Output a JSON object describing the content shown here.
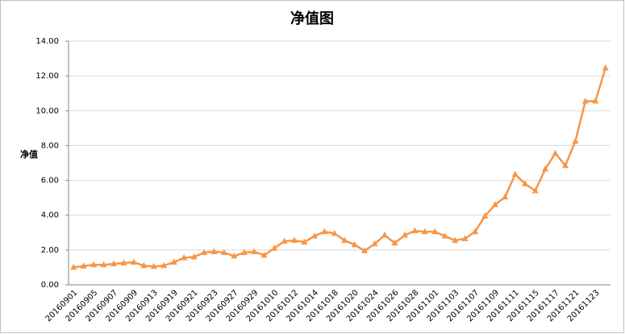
{
  "chart_data": {
    "type": "line",
    "title": "净值图",
    "y_label": "净值",
    "categories": [
      "20160901",
      null,
      "20160905",
      null,
      "20160907",
      null,
      "20160909",
      null,
      "20160913",
      null,
      "20160919",
      null,
      "20160921",
      null,
      "20160923",
      null,
      "20160927",
      null,
      "20160929",
      null,
      "20161010",
      null,
      "20161012",
      null,
      "20161014",
      null,
      "20161018",
      null,
      "20161020",
      null,
      "20161024",
      null,
      "20161026",
      null,
      "20161028",
      null,
      "20161101",
      null,
      "20161103",
      null,
      "20161107",
      null,
      "20161109",
      null,
      "20161111",
      null,
      "20161115",
      null,
      "20161117",
      null,
      "20161121",
      null,
      "20161123",
      null
    ],
    "series": [
      {
        "name": "净值",
        "color": "#f79646",
        "values": [
          1.0,
          1.08,
          1.15,
          1.15,
          1.2,
          1.25,
          1.3,
          1.1,
          1.05,
          1.1,
          1.3,
          1.55,
          1.6,
          1.85,
          1.9,
          1.85,
          1.65,
          1.85,
          1.9,
          1.7,
          2.1,
          2.5,
          2.55,
          2.45,
          2.8,
          3.05,
          2.95,
          2.55,
          2.3,
          1.95,
          2.35,
          2.85,
          2.4,
          2.85,
          3.1,
          3.05,
          3.05,
          2.8,
          2.55,
          2.65,
          3.05,
          3.95,
          4.6,
          5.05,
          6.35,
          5.8,
          5.4,
          6.65,
          7.55,
          6.85,
          8.25,
          10.55,
          10.55,
          12.45
        ]
      }
    ],
    "ylim": [
      0,
      14
    ],
    "yticks": [
      {
        "value": 0,
        "label": "0.00"
      },
      {
        "value": 2,
        "label": "2.00"
      },
      {
        "value": 4,
        "label": "4.00"
      },
      {
        "value": 6,
        "label": "6.00"
      },
      {
        "value": 8,
        "label": "8.00"
      },
      {
        "value": 10,
        "label": "10.00"
      },
      {
        "value": 12,
        "label": "12.00"
      },
      {
        "value": 14,
        "label": "14.00"
      }
    ],
    "grid": true
  }
}
